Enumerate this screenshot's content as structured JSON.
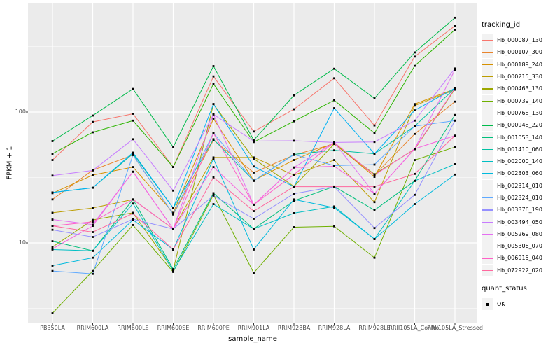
{
  "colors": {
    "background": "#FFFFFF",
    "panel_bg": "#EBEBEB",
    "gridline": "#FFFFFF",
    "tick_mark": "#333333",
    "tick_label": "#4D4D4D",
    "axis_title": "#000000",
    "legend_key_bg": "#F2F2F2",
    "point": "#000000"
  },
  "chart_data": {
    "type": "line",
    "title": "",
    "xlabel": "sample_name",
    "ylabel": "FPKM + 1",
    "y_scale": "log10",
    "y_ticks": [
      10,
      100
    ],
    "y_minor_gridlines": [
      3.162,
      31.62,
      316.2
    ],
    "ylim": [
      2.5,
      640
    ],
    "grid": "on",
    "legend_position": "right",
    "legend_title": "tracking_id",
    "status_legend_title": "quant_status",
    "status_items": [
      "OK"
    ],
    "point_shape": "small-black-square",
    "categories": [
      "PB350LA",
      "RRIM600LA",
      "RRIM600LE",
      "RRIM600SE",
      "RRIM600PE",
      "RRIM901LA",
      "RRIM928BA",
      "RRIM928LA",
      "RRIM928LE",
      "RRII105LA_Control",
      "RRII105LA_Stressed"
    ],
    "series": [
      {
        "name": "Hb_000087_130",
        "color": "#F8766D",
        "values": [
          43,
          84,
          97,
          38,
          187,
          71,
          105,
          181,
          79,
          265,
          455
        ]
      },
      {
        "name": "Hb_000107_300",
        "color": "#E9842C",
        "values": [
          21.5,
          36,
          47,
          16.5,
          61,
          34.5,
          47,
          57,
          33,
          68,
          120
        ]
      },
      {
        "name": "Hb_000189_240",
        "color": "#D69100",
        "values": [
          24,
          33,
          38,
          17,
          89,
          30,
          43,
          58,
          32,
          115,
          150
        ]
      },
      {
        "name": "Hb_000215_330",
        "color": "#BC9D00",
        "values": [
          17,
          18.5,
          21.5,
          12.8,
          45,
          45,
          33,
          43,
          20.5,
          112,
          148
        ]
      },
      {
        "name": "Hb_000463_130",
        "color": "#9CA700",
        "values": [
          9.3,
          15,
          17,
          6.2,
          115,
          44,
          27,
          57,
          33.5,
          52,
          150
        ]
      },
      {
        "name": "Hb_000739_140",
        "color": "#6FB000",
        "values": [
          2.9,
          6.1,
          13.7,
          6.0,
          23.3,
          5.9,
          13.2,
          13.4,
          7.7,
          43,
          54
        ]
      },
      {
        "name": "Hb_000768_130",
        "color": "#2CB600",
        "values": [
          48,
          70,
          86,
          38,
          164,
          59,
          85,
          123,
          69,
          225,
          425
        ]
      },
      {
        "name": "Hb_000948_220",
        "color": "#00BB4B",
        "values": [
          60,
          94,
          150,
          54,
          224,
          61,
          134,
          214,
          127,
          285,
          525
        ]
      },
      {
        "name": "Hb_001053_140",
        "color": "#00BF7C",
        "values": [
          10.3,
          8.7,
          21.5,
          6.3,
          24,
          12.8,
          21,
          27,
          17.8,
          29.8,
          95
        ]
      },
      {
        "name": "Hb_001410_060",
        "color": "#00C1A2",
        "values": [
          24.3,
          26.4,
          48,
          18.5,
          62,
          29.8,
          47.5,
          51,
          48,
          78,
          152
        ]
      },
      {
        "name": "Hb_002000_140",
        "color": "#00BFC4",
        "values": [
          8.9,
          8.7,
          20,
          6.1,
          19.8,
          12.8,
          16.9,
          19,
          10.7,
          29.8,
          40
        ]
      },
      {
        "name": "Hb_002303_060",
        "color": "#00BADE",
        "values": [
          6.7,
          7.7,
          15,
          8.9,
          44,
          8.9,
          21.5,
          18.6,
          10.7,
          19.8,
          33.3
        ]
      },
      {
        "name": "Hb_002314_010",
        "color": "#00B1F3",
        "values": [
          24.3,
          26.4,
          49,
          18.5,
          115,
          38.4,
          26.9,
          107,
          48,
          103,
          152
        ]
      },
      {
        "name": "Hb_002324_010",
        "color": "#5EA9FF",
        "values": [
          6.1,
          5.8,
          47,
          16.6,
          69,
          29.8,
          47.3,
          39,
          39.7,
          78,
          86
        ]
      },
      {
        "name": "Hb_003376_190",
        "color": "#9590FF",
        "values": [
          12.6,
          11.1,
          15.2,
          12.8,
          23,
          15.3,
          23.8,
          26.9,
          13.0,
          23.3,
          86
        ]
      },
      {
        "name": "Hb_003494_050",
        "color": "#C77CFF",
        "values": [
          32.7,
          35.8,
          62,
          25.1,
          96,
          60,
          60.4,
          58.6,
          59.1,
          86,
          215
        ]
      },
      {
        "name": "Hb_005269_080",
        "color": "#E56FF2",
        "values": [
          15.1,
          13.8,
          35,
          12.8,
          96,
          19.6,
          37.7,
          58.6,
          23.8,
          52.4,
          210
        ]
      },
      {
        "name": "Hb_005306_070",
        "color": "#F763DE",
        "values": [
          9.0,
          13.5,
          35,
          12.8,
          38,
          19.6,
          37.7,
          38.5,
          23.8,
          52.4,
          66
        ]
      },
      {
        "name": "Hb_006915_040",
        "color": "#FF61C7",
        "values": [
          13.5,
          14.5,
          21.5,
          12.8,
          69,
          19.6,
          33.3,
          58.6,
          33,
          52.4,
          152
        ]
      },
      {
        "name": "Hb_072922_020",
        "color": "#FF689E",
        "values": [
          13.5,
          12.1,
          16.8,
          8.9,
          31.7,
          17.5,
          26.9,
          26.9,
          26.9,
          33.7,
          66
        ]
      }
    ]
  }
}
